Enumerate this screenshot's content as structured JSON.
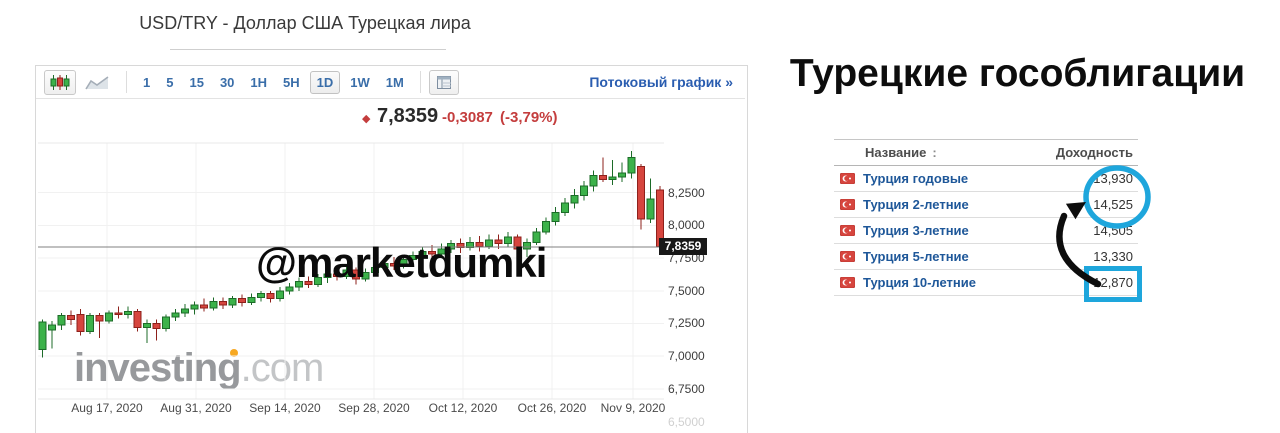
{
  "chart_panel": {
    "title": "USD/TRY - Доллар США Турецкая лира",
    "toolbar": {
      "timeframes": [
        "1",
        "5",
        "15",
        "30",
        "1H",
        "5H",
        "1D",
        "1W",
        "1M"
      ],
      "selected_timeframe": "1D",
      "stream_link": "Потоковый график »"
    },
    "quote": {
      "marker_glyph": "◆",
      "last": "7,8359",
      "change": "-0,3087",
      "change_pct": "(-3,79%)",
      "negative_color": "#c43d3d"
    },
    "price_tag": "7,8359",
    "watermark": "@marketdumki",
    "logo": {
      "main": "investing",
      "suffix": ".com",
      "dot_color": "#f7a821"
    },
    "axis": {
      "y_labels": [
        "8,2500",
        "8,0000",
        "7,7500",
        "7,5000",
        "7,2500",
        "7,0000",
        "6,7500"
      ],
      "y_cut_label": "6,5000",
      "x_labels": [
        "Aug 17, 2020",
        "Aug 31, 2020",
        "Sep 14, 2020",
        "Sep 28, 2020",
        "Oct 12, 2020",
        "Oct 26, 2020",
        "Nov 9, 2020"
      ]
    }
  },
  "chart_data": {
    "type": "candlestick",
    "title": "USD/TRY daily",
    "current_price": 7.8359,
    "change": -0.3087,
    "change_pct": -3.79,
    "y_ticks": [
      8.25,
      8.0,
      7.75,
      7.5,
      7.25,
      7.0,
      6.75
    ],
    "ylim": [
      6.66,
      8.63
    ],
    "x_tick_labels": [
      "Aug 17, 2020",
      "Aug 31, 2020",
      "Sep 14, 2020",
      "Sep 28, 2020",
      "Oct 12, 2020",
      "Oct 26, 2020",
      "Nov 9, 2020"
    ],
    "colors": {
      "up": "#3cb24a",
      "up_border": "#1c6b28",
      "down": "#d6453e",
      "down_border": "#8e201b",
      "price_line": "#808080"
    },
    "candles_ohlc": [
      [
        7.05,
        7.28,
        6.99,
        7.26
      ],
      [
        7.2,
        7.27,
        7.06,
        7.24
      ],
      [
        7.24,
        7.33,
        7.2,
        7.31
      ],
      [
        7.31,
        7.35,
        7.24,
        7.28
      ],
      [
        7.32,
        7.36,
        7.16,
        7.19
      ],
      [
        7.19,
        7.33,
        7.17,
        7.31
      ],
      [
        7.31,
        7.33,
        7.14,
        7.27
      ],
      [
        7.27,
        7.35,
        7.25,
        7.33
      ],
      [
        7.33,
        7.38,
        7.29,
        7.32
      ],
      [
        7.32,
        7.38,
        7.29,
        7.34
      ],
      [
        7.34,
        7.36,
        7.19,
        7.22
      ],
      [
        7.22,
        7.28,
        7.1,
        7.25
      ],
      [
        7.25,
        7.28,
        7.12,
        7.21
      ],
      [
        7.21,
        7.32,
        7.19,
        7.3
      ],
      [
        7.3,
        7.36,
        7.27,
        7.33
      ],
      [
        7.33,
        7.4,
        7.3,
        7.36
      ],
      [
        7.36,
        7.42,
        7.32,
        7.39
      ],
      [
        7.39,
        7.44,
        7.34,
        7.37
      ],
      [
        7.37,
        7.45,
        7.35,
        7.42
      ],
      [
        7.42,
        7.45,
        7.36,
        7.39
      ],
      [
        7.39,
        7.46,
        7.37,
        7.44
      ],
      [
        7.44,
        7.47,
        7.38,
        7.41
      ],
      [
        7.41,
        7.48,
        7.39,
        7.45
      ],
      [
        7.45,
        7.5,
        7.42,
        7.48
      ],
      [
        7.48,
        7.5,
        7.41,
        7.44
      ],
      [
        7.44,
        7.53,
        7.42,
        7.5
      ],
      [
        7.5,
        7.56,
        7.47,
        7.53
      ],
      [
        7.53,
        7.6,
        7.5,
        7.57
      ],
      [
        7.57,
        7.61,
        7.52,
        7.55
      ],
      [
        7.55,
        7.63,
        7.53,
        7.6
      ],
      [
        7.6,
        7.66,
        7.56,
        7.63
      ],
      [
        7.63,
        7.67,
        7.58,
        7.61
      ],
      [
        7.61,
        7.69,
        7.59,
        7.66
      ],
      [
        7.66,
        7.68,
        7.55,
        7.59
      ],
      [
        7.59,
        7.67,
        7.57,
        7.64
      ],
      [
        7.64,
        7.71,
        7.61,
        7.68
      ],
      [
        7.68,
        7.74,
        7.65,
        7.71
      ],
      [
        7.71,
        7.76,
        7.66,
        7.69
      ],
      [
        7.69,
        7.77,
        7.67,
        7.74
      ],
      [
        7.74,
        7.8,
        7.7,
        7.77
      ],
      [
        7.77,
        7.83,
        7.74,
        7.8
      ],
      [
        7.8,
        7.85,
        7.75,
        7.78
      ],
      [
        7.78,
        7.86,
        7.76,
        7.82
      ],
      [
        7.82,
        7.89,
        7.79,
        7.86
      ],
      [
        7.86,
        7.9,
        7.79,
        7.83
      ],
      [
        7.83,
        7.91,
        7.81,
        7.87
      ],
      [
        7.87,
        7.92,
        7.8,
        7.84
      ],
      [
        7.84,
        7.93,
        7.82,
        7.89
      ],
      [
        7.89,
        7.93,
        7.82,
        7.86
      ],
      [
        7.86,
        7.95,
        7.84,
        7.91
      ],
      [
        7.91,
        7.93,
        7.78,
        7.82
      ],
      [
        7.82,
        7.9,
        7.76,
        7.87
      ],
      [
        7.87,
        7.98,
        7.85,
        7.95
      ],
      [
        7.95,
        8.06,
        7.93,
        8.03
      ],
      [
        8.03,
        8.14,
        8.0,
        8.1
      ],
      [
        8.1,
        8.21,
        8.07,
        8.17
      ],
      [
        8.17,
        8.28,
        8.13,
        8.23
      ],
      [
        8.23,
        8.34,
        8.19,
        8.3
      ],
      [
        8.3,
        8.42,
        8.26,
        8.38
      ],
      [
        8.38,
        8.52,
        8.33,
        8.35
      ],
      [
        8.35,
        8.5,
        8.31,
        8.37
      ],
      [
        8.37,
        8.48,
        8.33,
        8.4
      ],
      [
        8.4,
        8.57,
        8.36,
        8.52
      ],
      [
        8.45,
        8.47,
        7.97,
        8.05
      ],
      [
        8.05,
        8.36,
        8.02,
        8.2
      ],
      [
        8.27,
        8.3,
        7.8,
        7.84
      ]
    ]
  },
  "bonds_panel": {
    "title": "Турецкие гособлигации",
    "table": {
      "header": {
        "name": "Название",
        "sort_glyph": ":",
        "value": "Доходность"
      },
      "rows": [
        {
          "name": "Турция годовые",
          "value": "13,930"
        },
        {
          "name": "Турция 2-летние",
          "value": "14,525"
        },
        {
          "name": "Турция 3-летние",
          "value": "14,505"
        },
        {
          "name": "Турция 5-летние",
          "value": "13,330"
        },
        {
          "name": "Турция 10-летние",
          "value": "12,870"
        }
      ]
    },
    "annotation_color": "#1ea6dc",
    "arrow_color": "#0d0d0d"
  }
}
